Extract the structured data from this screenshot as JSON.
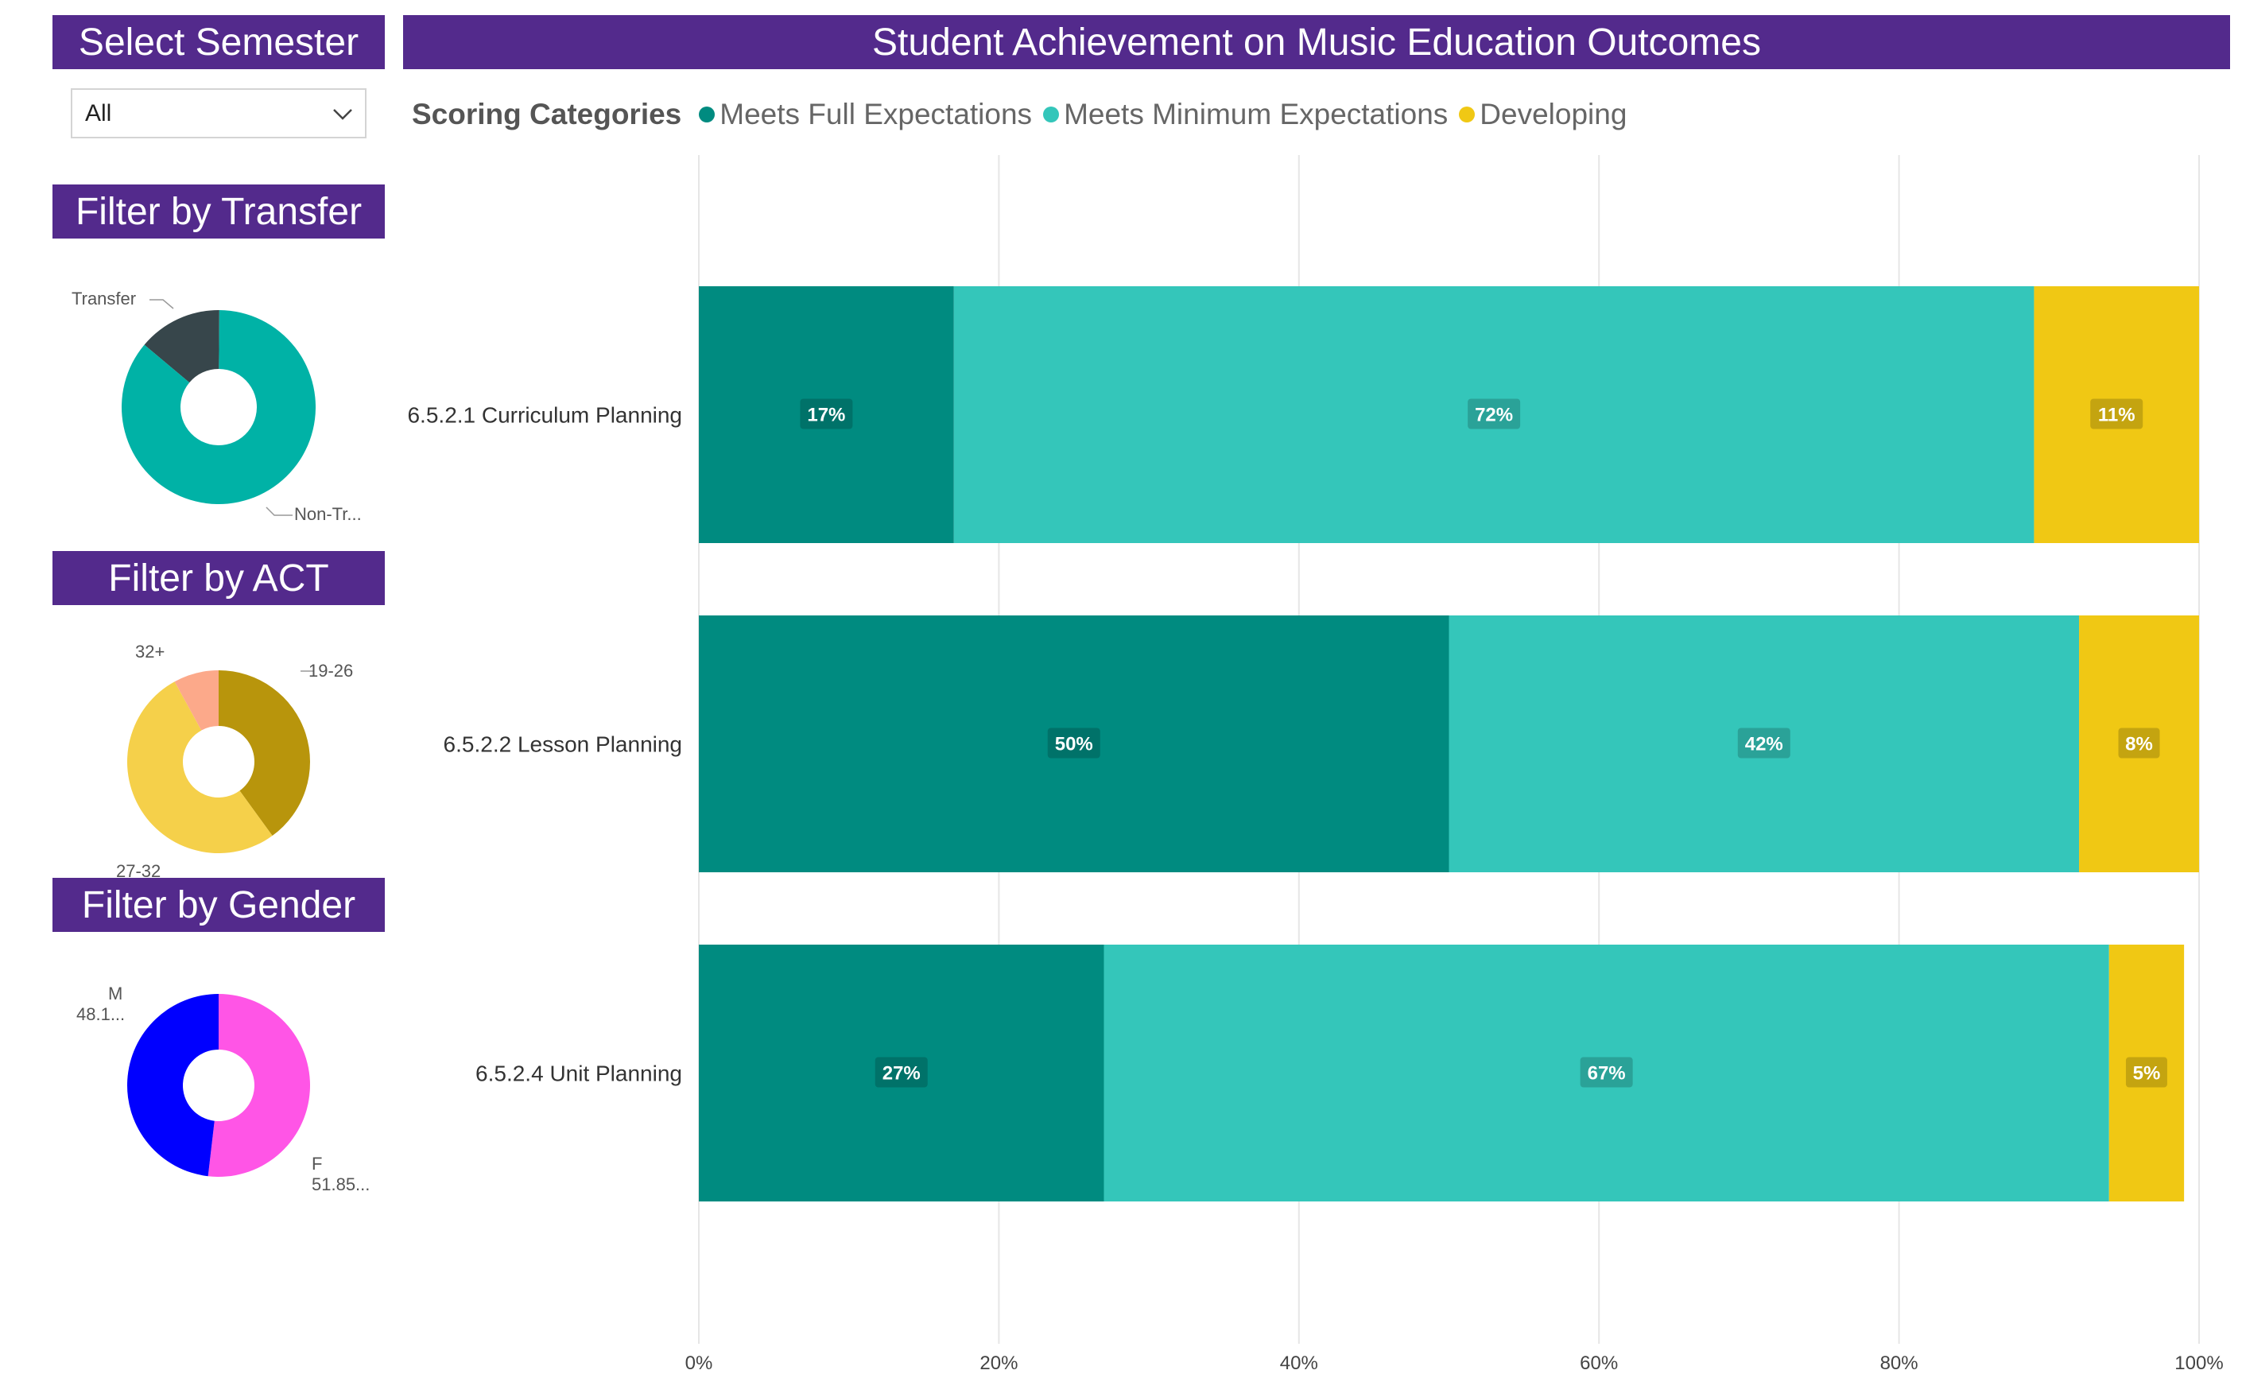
{
  "headers": {
    "semester": "Select Semester",
    "transfer": "Filter by Transfer",
    "act": "Filter by ACT",
    "gender": "Filter by Gender",
    "title": "Student Achievement on Music Education Outcomes"
  },
  "semester_dropdown": {
    "value": "All"
  },
  "legend": {
    "title": "Scoring Categories",
    "items": [
      {
        "label": "Meets Full Expectations",
        "color": "#008b80"
      },
      {
        "label": "Meets Minimum Expectations",
        "color": "#34c6ba"
      },
      {
        "label": "Developing",
        "color": "#f0c814"
      }
    ]
  },
  "transfer_donut": {
    "labels": {
      "transfer": "Transfer",
      "non_transfer": "Non-Tr..."
    },
    "slices": [
      {
        "name": "Transfer",
        "value": 0.14,
        "color": "#37464b"
      },
      {
        "name": "Non-Transfer",
        "value": 0.86,
        "color": "#00b2a6"
      }
    ]
  },
  "act_donut": {
    "labels": {
      "a": "32+",
      "b": "19-26",
      "c": "27-32"
    },
    "slices": [
      {
        "name": "19-26",
        "value": 0.4,
        "color": "#b8950c"
      },
      {
        "name": "27-32",
        "value": 0.52,
        "color": "#f5d04a"
      },
      {
        "name": "32+",
        "value": 0.08,
        "color": "#fca98a"
      }
    ]
  },
  "gender_donut": {
    "labels": {
      "m": "M",
      "m_val": "48.1...",
      "f": "F",
      "f_val": "51.85..."
    },
    "slices": [
      {
        "name": "F",
        "value": 0.5185,
        "color": "#ff55e6"
      },
      {
        "name": "M",
        "value": 0.4815,
        "color": "#0000ff"
      }
    ]
  },
  "chart_data": {
    "type": "bar",
    "orientation": "horizontal",
    "stacked": "100%",
    "categories": [
      "6.5.2.1 Curriculum Planning",
      "6.5.2.2 Lesson Planning",
      "6.5.2.4 Unit Planning"
    ],
    "series": [
      {
        "name": "Meets Full Expectations",
        "values": [
          17,
          50,
          27
        ],
        "labels": [
          "17%",
          "50%",
          "27%"
        ],
        "color": "#008b80"
      },
      {
        "name": "Meets Minimum Expectations",
        "values": [
          72,
          42,
          67
        ],
        "labels": [
          "72%",
          "42%",
          "67%"
        ],
        "color": "#34c6ba"
      },
      {
        "name": "Developing",
        "values": [
          11,
          8,
          5
        ],
        "labels": [
          "11%",
          "8%",
          "5%"
        ],
        "color": "#f0c814"
      }
    ],
    "x_ticks": [
      "0%",
      "20%",
      "40%",
      "60%",
      "80%",
      "100%"
    ],
    "xlim": [
      0,
      100
    ],
    "grid": true,
    "legend": "top-left"
  }
}
